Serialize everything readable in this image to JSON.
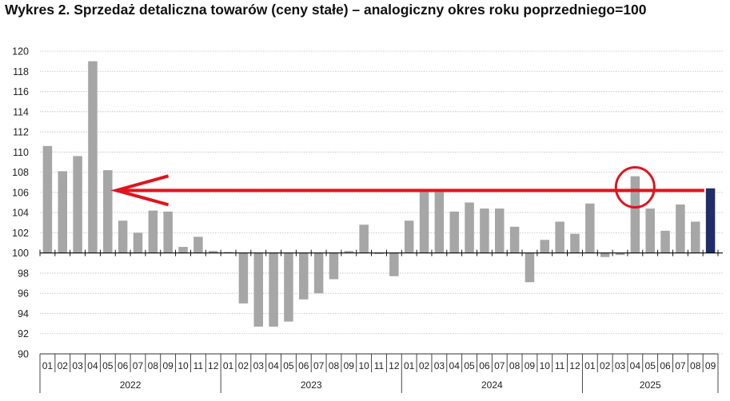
{
  "chart_data": {
    "type": "bar",
    "title": "Wykres 2. Sprzedaż detaliczna towarów (ceny stałe) – analogiczny okres roku poprzedniego=100",
    "baseline": 100,
    "ylim": [
      90,
      120
    ],
    "yticks": [
      "90",
      "92",
      "94",
      "96",
      "98",
      "100",
      "102",
      "104",
      "106",
      "108",
      "110",
      "112",
      "114",
      "116",
      "118",
      "120"
    ],
    "grid": true,
    "years": [
      "2022",
      "2023",
      "2024",
      "2025"
    ],
    "categories": [
      "01",
      "02",
      "03",
      "04",
      "05",
      "06",
      "07",
      "08",
      "09",
      "10",
      "11",
      "12",
      "01",
      "02",
      "03",
      "04",
      "05",
      "06",
      "07",
      "08",
      "09",
      "10",
      "11",
      "12",
      "01",
      "02",
      "03",
      "04",
      "05",
      "06",
      "07",
      "08",
      "09",
      "10",
      "11",
      "12",
      "01",
      "02",
      "03",
      "04",
      "05",
      "06",
      "07",
      "08",
      "09"
    ],
    "values": [
      110.6,
      108.1,
      109.6,
      119.0,
      108.2,
      103.2,
      102.0,
      104.2,
      104.1,
      100.6,
      101.6,
      100.2,
      100.1,
      95.0,
      92.7,
      92.7,
      93.2,
      95.4,
      96.0,
      97.4,
      100.2,
      102.8,
      99.9,
      97.7,
      103.2,
      106.1,
      106.1,
      104.1,
      105.0,
      104.4,
      104.4,
      102.6,
      97.1,
      101.3,
      103.1,
      101.9,
      104.9,
      99.6,
      99.8,
      107.6,
      104.4,
      102.2,
      104.8,
      103.1,
      106.4
    ],
    "colors": {
      "bar": "#a6a6a6",
      "highlight": "#1f2d6b",
      "annotation": "#e0141e",
      "grid": "#bdbdbd"
    },
    "annotations": {
      "reference_level": 106.2,
      "arrow_from_category_index": 44,
      "arrow_to_category_index": 4,
      "circle_category_index": 39
    }
  }
}
